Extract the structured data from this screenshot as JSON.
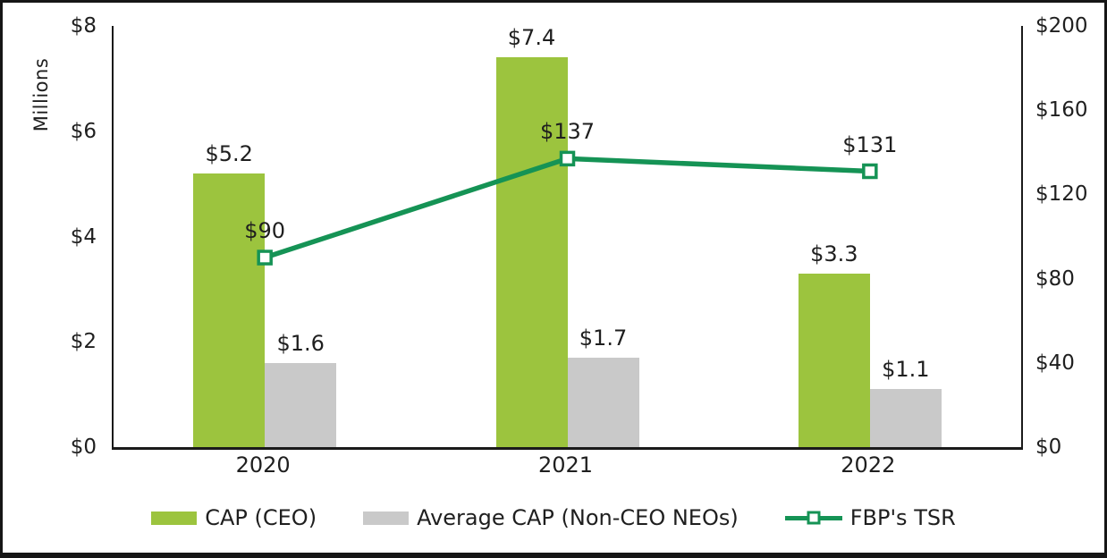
{
  "chart_data": {
    "type": "combo-bar-line",
    "categories": [
      "2020",
      "2021",
      "2022"
    ],
    "series": [
      {
        "name": "CAP (CEO)",
        "type": "bar",
        "axis": "left",
        "color": "#9CC43E",
        "values": [
          5.2,
          7.4,
          3.3
        ],
        "labels": [
          "$5.2",
          "$7.4",
          "$3.3"
        ]
      },
      {
        "name": "Average CAP (Non-CEO NEOs)",
        "type": "bar",
        "axis": "left",
        "color": "#C9C9C9",
        "values": [
          1.6,
          1.7,
          1.1
        ],
        "labels": [
          "$1.6",
          "$1.7",
          "$1.1"
        ]
      },
      {
        "name": "FBP's TSR",
        "type": "line",
        "axis": "right",
        "color": "#159355",
        "marker": "white-square",
        "values": [
          90,
          137,
          131
        ],
        "labels": [
          "$90",
          "$137",
          "$131"
        ]
      }
    ],
    "left_axis": {
      "title": "Millions",
      "min": 0,
      "max": 8,
      "ticks": [
        {
          "label": "$8",
          "value": 8
        },
        {
          "label": "$6",
          "value": 6
        },
        {
          "label": "$4",
          "value": 4
        },
        {
          "label": "$2",
          "value": 2
        },
        {
          "label": "$0",
          "value": 0
        }
      ]
    },
    "right_axis": {
      "min": 0,
      "max": 200,
      "ticks": [
        {
          "label": "$200",
          "value": 200
        },
        {
          "label": "$160",
          "value": 160
        },
        {
          "label": "$120",
          "value": 120
        },
        {
          "label": "$80",
          "value": 80
        },
        {
          "label": "$40",
          "value": 40
        },
        {
          "label": "$0",
          "value": 0
        }
      ]
    },
    "legend_position": "bottom",
    "grid": false,
    "axis_color": "#1A1A1A",
    "text_color": "#1F1F1F"
  }
}
